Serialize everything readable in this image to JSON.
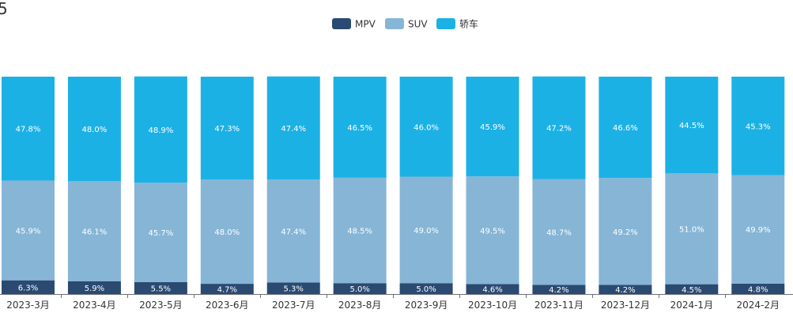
{
  "chart_data": {
    "type": "bar",
    "stacked": true,
    "percent_stacked": true,
    "title": "",
    "xlabel": "",
    "ylabel": "",
    "legend_position": "top-center",
    "categories": [
      "2023-3月",
      "2023-4月",
      "2023-5月",
      "2023-6月",
      "2023-7月",
      "2023-8月",
      "2023-9月",
      "2023-10月",
      "2023-11月",
      "2023-12月",
      "2024-1月",
      "2024-2月"
    ],
    "series": [
      {
        "name": "MPV",
        "color": "#2a4a72",
        "values": [
          6.3,
          5.9,
          5.5,
          4.7,
          5.3,
          5.0,
          5.0,
          4.6,
          4.2,
          4.2,
          4.5,
          4.8
        ]
      },
      {
        "name": "SUV",
        "color": "#86b5d6",
        "values": [
          45.9,
          46.1,
          45.7,
          48.0,
          47.4,
          48.5,
          49.0,
          49.5,
          48.7,
          49.2,
          51.0,
          49.9
        ]
      },
      {
        "name": "轿车",
        "color": "#1cb1e5",
        "values": [
          47.8,
          48.0,
          48.9,
          47.3,
          47.4,
          46.5,
          46.0,
          45.9,
          47.2,
          46.6,
          44.5,
          45.3
        ]
      }
    ],
    "data_labels": [
      [
        "6.3%",
        "5.9%",
        "5.5%",
        "4.7%",
        "5.3%",
        "5.0%",
        "5.0%",
        "4.6%",
        "4.2%",
        "4.2%",
        "4.5%",
        "4.8%"
      ],
      [
        "45.9%",
        "46.1%",
        "45.7%",
        "48.0%",
        "47.4%",
        "48.5%",
        "49.0%",
        "49.5%",
        "48.7%",
        "49.2%",
        "51.0%",
        "49.9%"
      ],
      [
        "47.8%",
        "48.0%",
        "48.9%",
        "47.3%",
        "47.4%",
        "46.5%",
        "46.0%",
        "45.9%",
        "47.2%",
        "46.6%",
        "44.5%",
        "45.3%"
      ]
    ]
  }
}
